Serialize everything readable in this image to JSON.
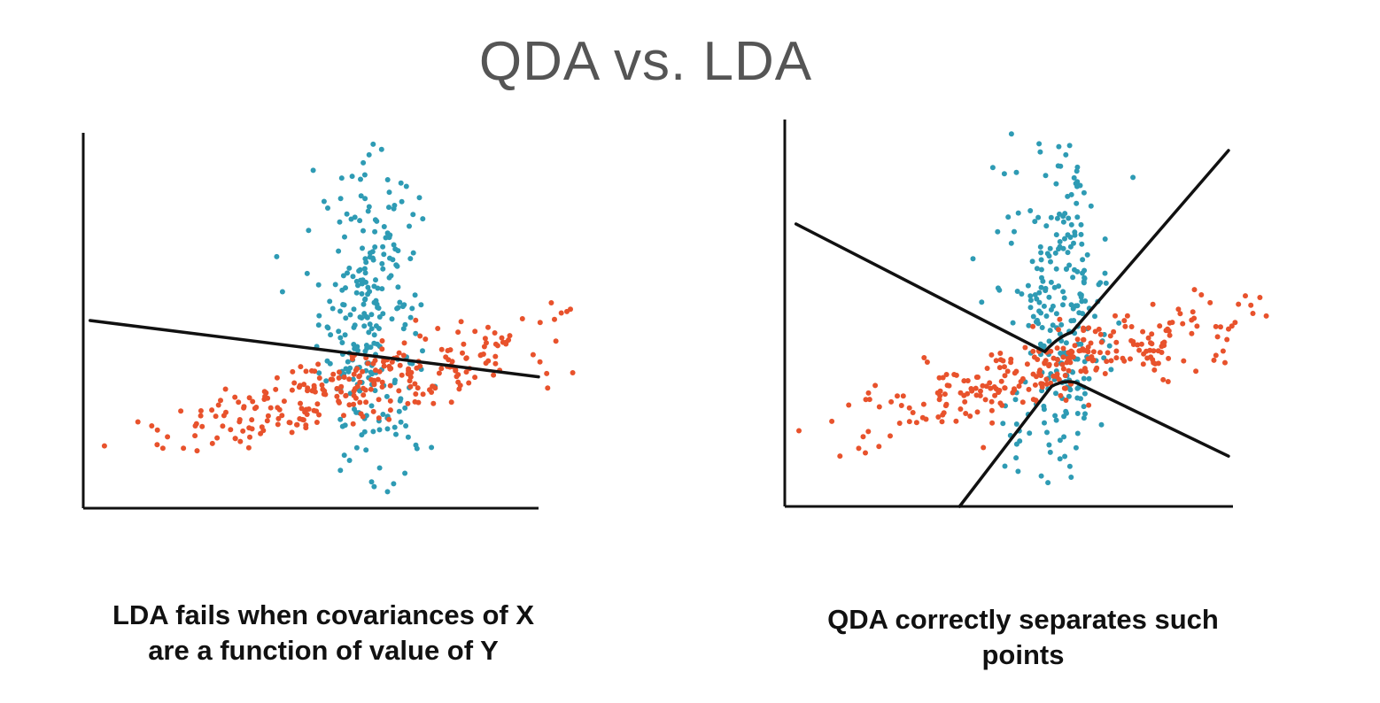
{
  "page": {
    "title": "QDA vs. LDA"
  },
  "colors": {
    "class_a": "#2e9bb4",
    "class_b": "#e8522c",
    "boundary": "#111111",
    "axis": "#111111"
  },
  "captions": {
    "left": [
      "LDA fails when covariances of X",
      "are a function of value of Y"
    ],
    "right": [
      "QDA correctly separates such",
      "points"
    ]
  },
  "chart_data": [
    {
      "type": "scatter",
      "title": "",
      "xlabel": "",
      "ylabel": "",
      "xlim": [
        0,
        10
      ],
      "ylim": [
        0,
        10
      ],
      "grid": false,
      "series": [
        {
          "key": "class_a",
          "points": {
            "cx": 6.3,
            "cy": 5.0,
            "sx": 0.55,
            "sy": 2.1,
            "n": 260,
            "outliers": [
              [
                5.05,
                9.0
              ],
              [
                6.15,
                9.2
              ],
              [
                4.25,
                6.7
              ],
              [
                4.95,
                7.4
              ]
            ]
          }
        },
        {
          "key": "class_b",
          "points": {
            "cx": 6.2,
            "cy": 3.3,
            "angle_deg": 17,
            "sx": 2.4,
            "sy": 0.45,
            "n": 290,
            "outliers": [
              [
                1.2,
                2.3
              ],
              [
                1.75,
                1.6
              ],
              [
                1.85,
                1.9
              ],
              [
                2.2,
                1.6
              ],
              [
                10.5,
                5.2
              ],
              [
                10.7,
                5.3
              ]
            ]
          }
        }
      ],
      "decision_boundaries": [
        {
          "kind": "line",
          "points": [
            [
              0.15,
              5.0
            ],
            [
              10.0,
              3.5
            ]
          ]
        }
      ]
    },
    {
      "type": "scatter",
      "title": "",
      "xlabel": "",
      "ylabel": "",
      "xlim": [
        0,
        10
      ],
      "ylim": [
        0,
        10
      ],
      "grid": false,
      "series": [
        {
          "key": "class_a",
          "points": {
            "cx": 6.1,
            "cy": 5.0,
            "sx": 0.55,
            "sy": 2.1,
            "n": 260,
            "outliers": [
              [
                4.9,
                8.6
              ],
              [
                6.1,
                8.8
              ],
              [
                4.2,
                6.4
              ],
              [
                4.75,
                7.1
              ]
            ]
          }
        },
        {
          "key": "class_b",
          "points": {
            "cx": 6.0,
            "cy": 3.6,
            "angle_deg": 17,
            "sx": 2.4,
            "sy": 0.45,
            "n": 290,
            "outliers": [
              [
                1.05,
                2.2
              ],
              [
                1.65,
                1.5
              ],
              [
                1.75,
                1.8
              ],
              [
                2.1,
                1.55
              ],
              [
                10.4,
                5.2
              ],
              [
                10.6,
                5.4
              ]
            ]
          }
        }
      ],
      "decision_boundaries": [
        {
          "kind": "curve",
          "points": [
            [
              0.25,
              7.3
            ],
            [
              5.8,
              4.0
            ],
            [
              6.4,
              4.5
            ],
            [
              9.9,
              9.2
            ]
          ]
        },
        {
          "kind": "curve",
          "points": [
            [
              3.9,
              0.0
            ],
            [
              5.95,
              3.1
            ],
            [
              6.5,
              3.2
            ],
            [
              9.9,
              1.3
            ]
          ]
        }
      ]
    }
  ]
}
